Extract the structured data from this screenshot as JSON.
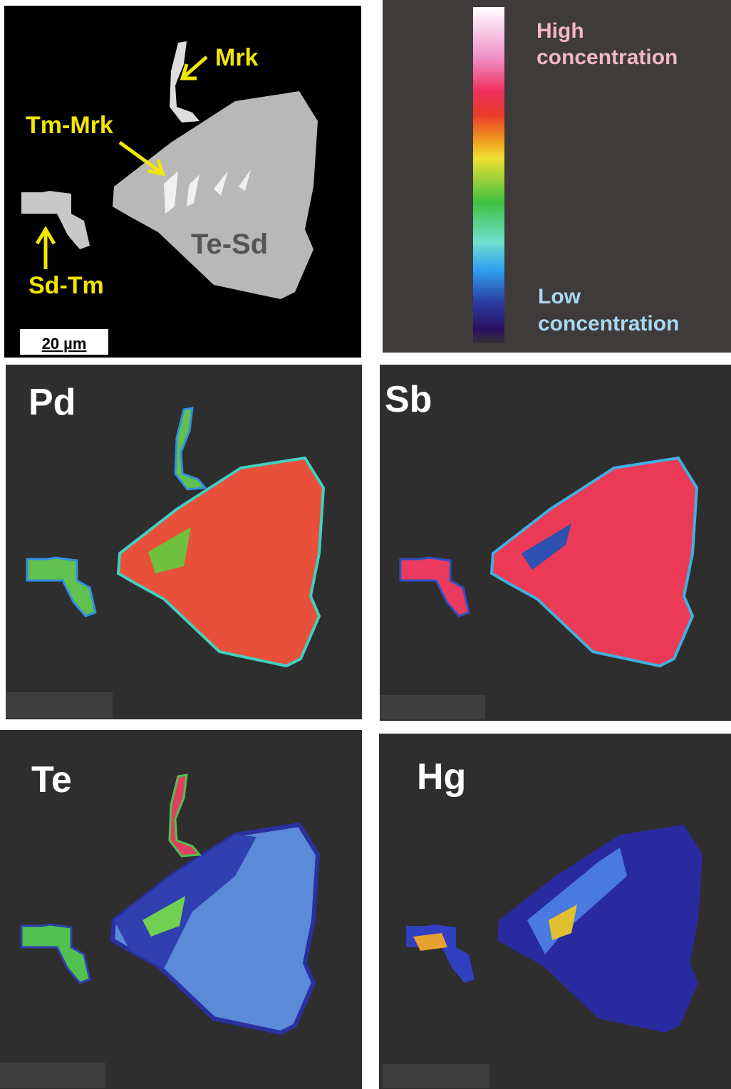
{
  "bse": {
    "labels": [
      "Mrk",
      "Tm-Mrk",
      "Sd-Tm",
      "Te-Sd"
    ],
    "scale_bar": "20 µm"
  },
  "legend": {
    "high": [
      "High",
      "concentration"
    ],
    "low": [
      "Low",
      "concentration"
    ]
  },
  "maps": [
    "Pd",
    "Sb",
    "Te",
    "Hg"
  ]
}
